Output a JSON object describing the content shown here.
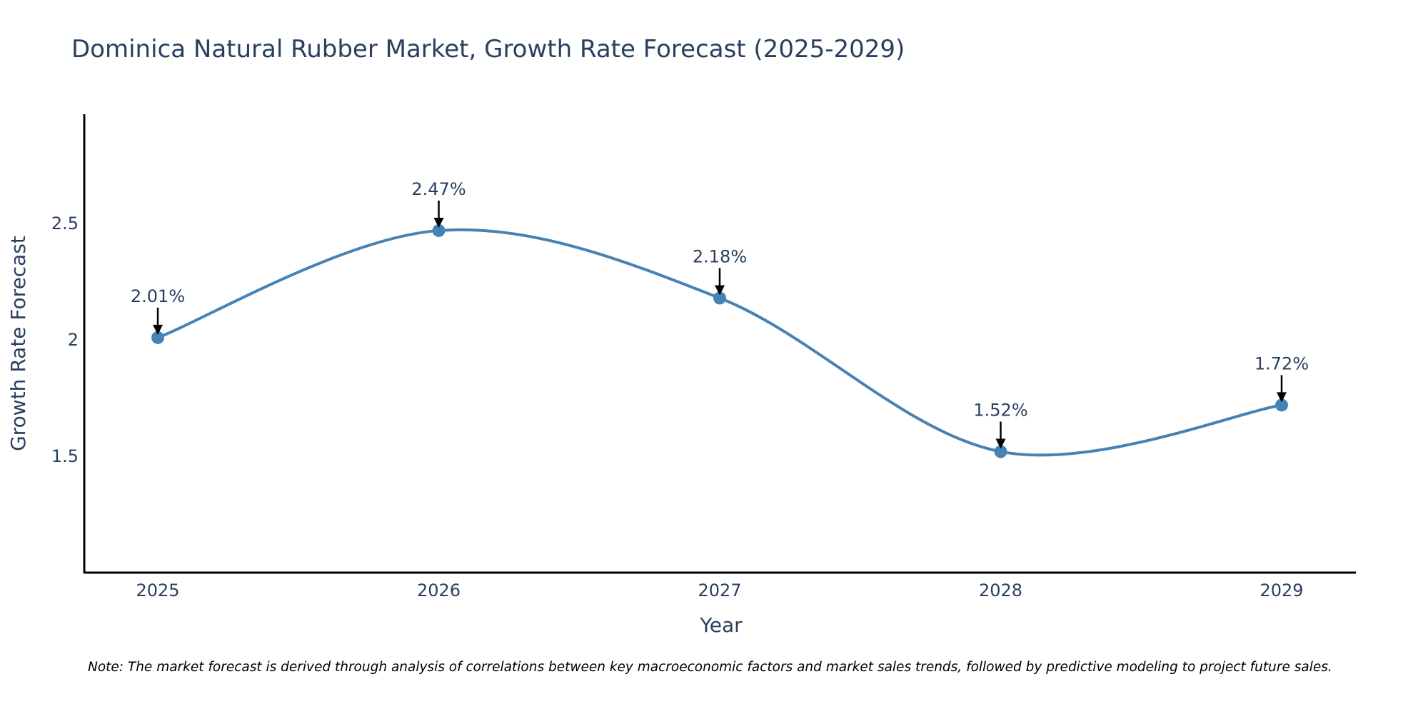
{
  "chart_data": {
    "type": "line",
    "title": "Dominica Natural Rubber Market, Growth Rate Forecast (2025-2029)",
    "xlabel": "Year",
    "ylabel": "Growth Rate Forecast",
    "categories": [
      "2025",
      "2026",
      "2027",
      "2028",
      "2029"
    ],
    "series": [
      {
        "name": "Growth Rate Forecast",
        "values": [
          2.01,
          2.47,
          2.18,
          1.52,
          1.72
        ],
        "labels": [
          "2.01%",
          "2.47%",
          "2.18%",
          "1.52%",
          "1.72%"
        ],
        "color": "#4682b4"
      }
    ],
    "ylim": [
      1.0,
      2.97
    ],
    "yticks": [
      1.5,
      2,
      2.5
    ],
    "ytick_labels": [
      "1.5",
      "2",
      "2.5"
    ],
    "grid": false,
    "line_shape": "spline"
  },
  "note": "Note: The market forecast is derived through analysis of correlations between key macroeconomic factors and market sales trends, followed by predictive modeling to project future sales.",
  "colors": {
    "text": "#2a3f5f",
    "axis": "#000000",
    "line": "#4682b4",
    "arrow": "#000000"
  }
}
